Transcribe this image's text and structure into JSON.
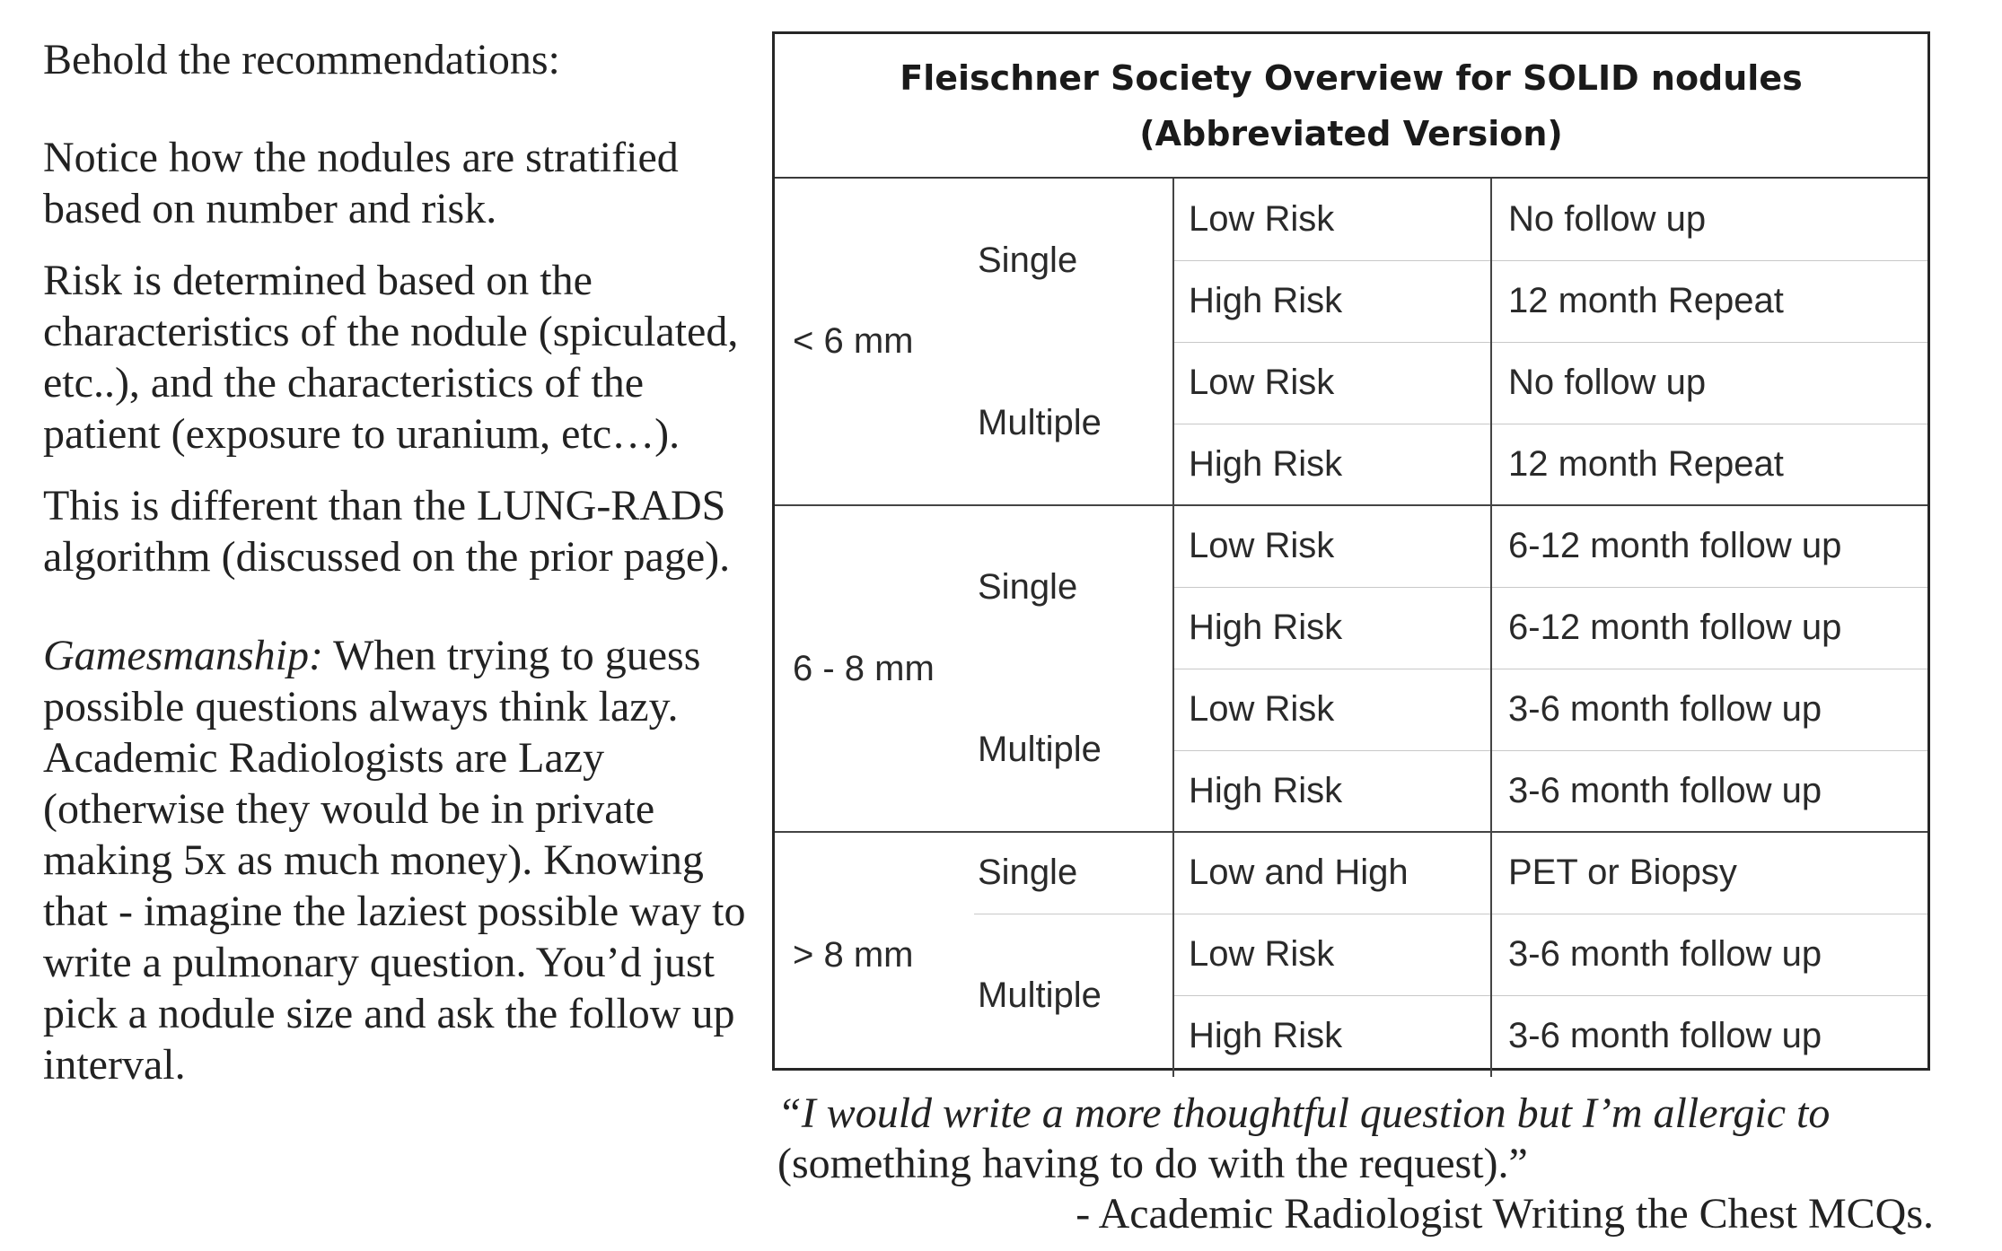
{
  "left_text": {
    "intro": "Behold the recommendations:",
    "notice": "Notice how the nodules are stratified based on number and risk.",
    "risk": "Risk is determined based on the characteristics of the nodule (spiculated, etc..), and the characteristics of the patient (exposure to uranium, etc…).",
    "different": "This is different than the LUNG-RADS algorithm (discussed on the prior page).",
    "gamesmanship_label": "Gamesmanship:",
    "gamesmanship_text": "When trying to guess possible questions always think lazy. Academic Radiologists are Lazy (otherwise they would be in private making 5x as much money). Knowing that - imagine the laziest possible way to write a pulmonary question.  You’d just pick a nodule size and ask the follow up interval."
  },
  "table": {
    "title_line1": "Fleischner Society Overview for SOLID nodules",
    "title_line2": "(Abbreviated Version)",
    "groups": [
      {
        "size": "< 6 mm",
        "counts": [
          {
            "count": "Single",
            "rows": [
              {
                "risk": "Low Risk",
                "followup": "No follow up"
              },
              {
                "risk": "High Risk",
                "followup": "12 month Repeat"
              }
            ]
          },
          {
            "count": "Multiple",
            "rows": [
              {
                "risk": "Low Risk",
                "followup": "No follow up"
              },
              {
                "risk": "High Risk",
                "followup": "12 month Repeat"
              }
            ]
          }
        ]
      },
      {
        "size": "6 - 8 mm",
        "counts": [
          {
            "count": "Single",
            "rows": [
              {
                "risk": "Low Risk",
                "followup": "6-12 month follow up"
              },
              {
                "risk": "High Risk",
                "followup": "6-12 month follow up"
              }
            ]
          },
          {
            "count": "Multiple",
            "rows": [
              {
                "risk": "Low Risk",
                "followup": "3-6 month follow up"
              },
              {
                "risk": "High Risk",
                "followup": "3-6 month follow up"
              }
            ]
          }
        ]
      },
      {
        "size": "> 8 mm",
        "counts": [
          {
            "count": "Single",
            "rows": [
              {
                "risk": "Low and High",
                "followup": "PET or Biopsy"
              }
            ]
          },
          {
            "count": "Multiple",
            "rows": [
              {
                "risk": "Low Risk",
                "followup": "3-6 month follow up"
              },
              {
                "risk": "High Risk",
                "followup": "3-6 month follow up"
              }
            ]
          }
        ]
      }
    ]
  },
  "quote": {
    "italic_part": "“I would write a more thoughtful question but I’m allergic to",
    "plain_part": "(something having to do with the request).”",
    "attribution": "- Academic Radiologist Writing the Chest MCQs."
  }
}
